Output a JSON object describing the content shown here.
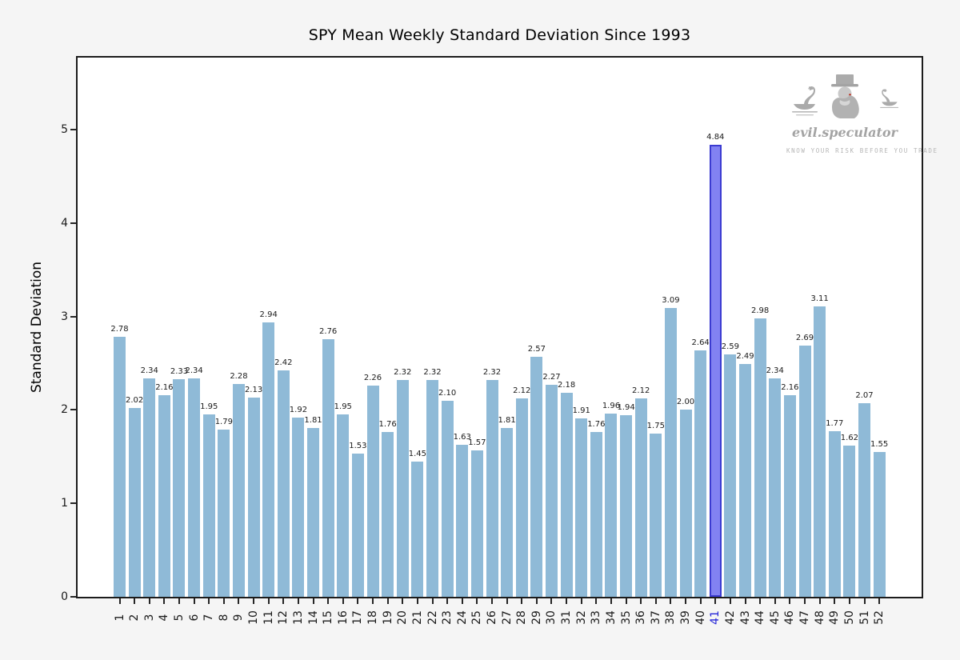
{
  "chart_data": {
    "type": "bar",
    "title": "SPY Mean Weekly Standard Deviation Since 1993",
    "xlabel": "",
    "ylabel": "Standard Deviation",
    "categories": [
      1,
      2,
      3,
      4,
      5,
      6,
      7,
      8,
      9,
      10,
      11,
      12,
      13,
      14,
      15,
      16,
      17,
      18,
      19,
      20,
      21,
      22,
      23,
      24,
      25,
      26,
      27,
      28,
      29,
      30,
      31,
      32,
      33,
      34,
      35,
      36,
      37,
      38,
      39,
      40,
      41,
      42,
      43,
      44,
      45,
      46,
      47,
      48,
      49,
      50,
      51,
      52
    ],
    "values": [
      2.78,
      2.02,
      2.34,
      2.16,
      2.33,
      2.34,
      1.95,
      1.79,
      2.28,
      2.13,
      2.94,
      2.42,
      1.92,
      1.81,
      2.76,
      1.95,
      1.53,
      2.26,
      1.76,
      2.32,
      1.45,
      2.32,
      2.1,
      1.63,
      1.57,
      2.32,
      1.81,
      2.12,
      2.57,
      2.27,
      2.18,
      1.91,
      1.76,
      1.96,
      1.94,
      2.12,
      1.75,
      3.09,
      2.0,
      2.64,
      4.84,
      2.59,
      2.49,
      2.98,
      2.34,
      2.16,
      2.69,
      3.11,
      1.77,
      1.62,
      2.07,
      1.55
    ],
    "yticks": [
      0,
      1,
      2,
      3,
      4,
      5
    ],
    "ylim": [
      0,
      5.77
    ],
    "grid": false,
    "legend": null,
    "bar_value_labels": true,
    "highlight": {
      "week": 41,
      "value": 4.84
    },
    "colors": {
      "bar": "#8fbad7",
      "highlight_fill": "#8282f2",
      "highlight_border": "#3b3bd1",
      "highlight_tick": "#2323d7",
      "text": "#1a1a1a",
      "figure_bg": "#f5f5f5",
      "plot_bg": "#ffffff"
    }
  },
  "watermark": {
    "brand": "evil.speculator",
    "tagline": "KNOW YOUR RISK BEFORE YOU TRADE"
  }
}
